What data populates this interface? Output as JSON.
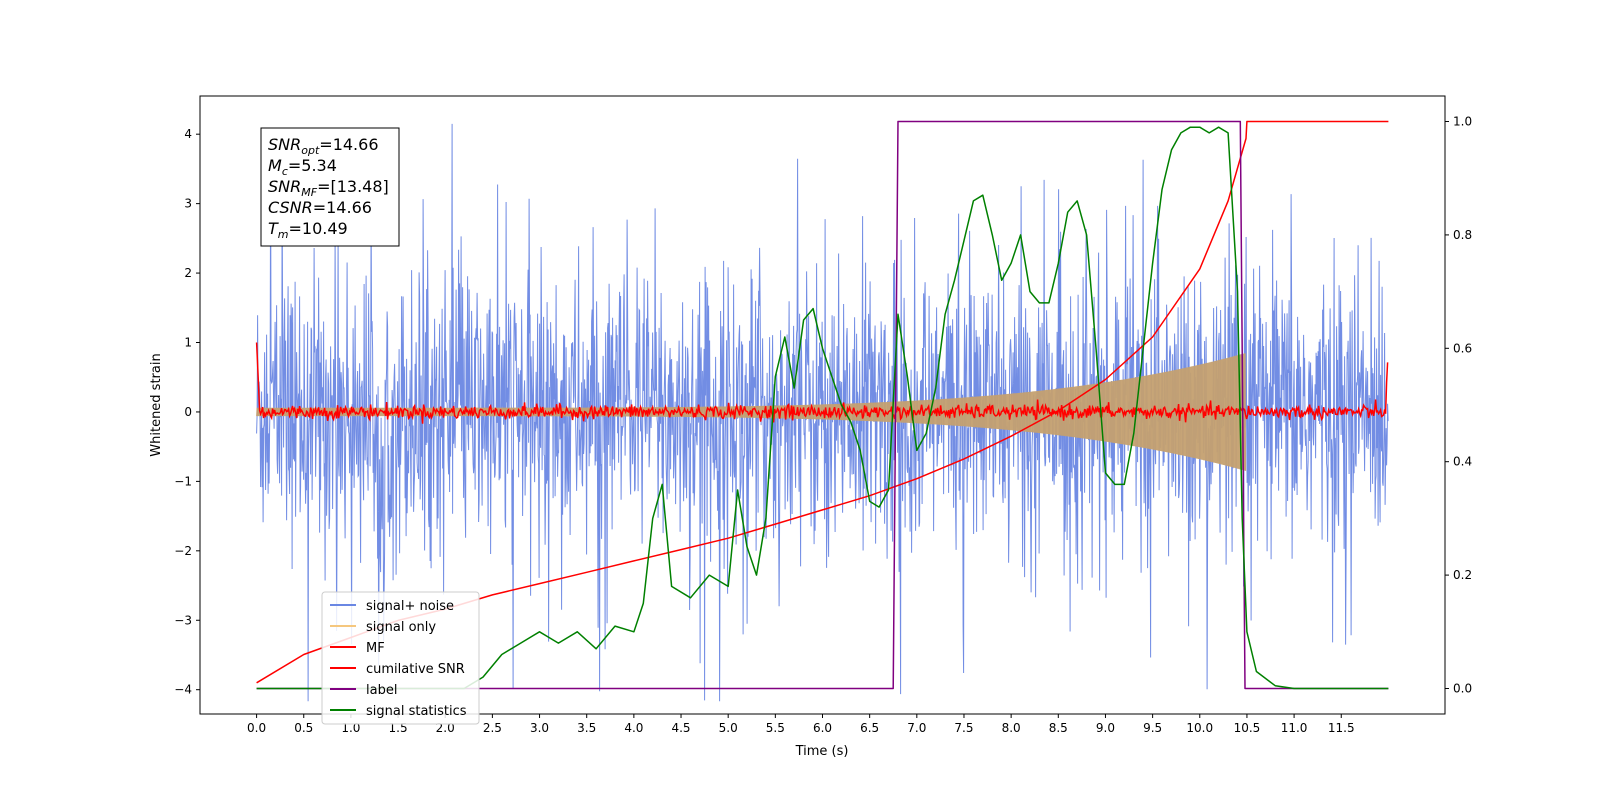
{
  "chart_data": {
    "type": "line",
    "title": "",
    "xlabel": "Time (s)",
    "ylabel": "Whitened strain",
    "y2label": "",
    "xlim": [
      -0.6,
      12.6
    ],
    "ylim": [
      -4.35,
      4.55
    ],
    "y2lim": [
      -0.045,
      1.045
    ],
    "grid": false,
    "legend_position": "lower-left",
    "x_ticks": [
      "0.0",
      "0.5",
      "1.0",
      "1.5",
      "2.0",
      "2.5",
      "3.0",
      "3.5",
      "4.0",
      "4.5",
      "5.0",
      "5.5",
      "6.0",
      "6.5",
      "7.0",
      "7.5",
      "8.0",
      "8.5",
      "9.0",
      "9.5",
      "10.0",
      "10.5",
      "11.0",
      "11.5"
    ],
    "y_ticks": [
      4,
      3,
      2,
      1,
      0,
      -1,
      -2,
      -3,
      -4
    ],
    "y2_ticks": [
      "1.0",
      "0.8",
      "0.6",
      "0.4",
      "0.2",
      "0.0"
    ],
    "annotation": {
      "lines": [
        {
          "base": "SNR",
          "sub": "opt",
          "value": "=14.66"
        },
        {
          "base": "M",
          "sub": "c",
          "value": "=5.34"
        },
        {
          "base": "SNR",
          "sub": "MF",
          "value": "=[13.48]"
        },
        {
          "base": "CSNR",
          "sub": "",
          "value": "=14.66"
        },
        {
          "base": "T",
          "sub": "m",
          "value": "=10.49"
        }
      ]
    },
    "series": [
      {
        "name": "signal+ noise",
        "color": "#6a87e3",
        "axis": "left",
        "style": "noise",
        "x_range": [
          0.0,
          12.0
        ],
        "amplitude": 1.0,
        "spike_max": 4.2
      },
      {
        "name": "signal only",
        "color": "#f5c77e",
        "axis": "left",
        "style": "chirp",
        "x_range": [
          0.0,
          10.49
        ],
        "amplitude_start": 0.06,
        "amplitude_end": 0.85
      },
      {
        "name": "MF",
        "color": "#ff0000",
        "axis": "left",
        "style": "mf",
        "x_range": [
          0.0,
          12.0
        ],
        "edge_value": 1.0
      },
      {
        "name": "cumilative SNR",
        "color": "#ff0000",
        "axis": "right",
        "x": [
          0.0,
          0.5,
          1.0,
          1.5,
          2.0,
          2.5,
          3.0,
          3.5,
          4.0,
          4.5,
          5.0,
          5.5,
          6.0,
          6.5,
          7.0,
          7.5,
          8.0,
          8.5,
          9.0,
          9.5,
          10.0,
          10.3,
          10.49,
          10.5,
          12.0
        ],
        "y": [
          0.01,
          0.06,
          0.09,
          0.12,
          0.14,
          0.165,
          0.185,
          0.205,
          0.225,
          0.245,
          0.265,
          0.29,
          0.315,
          0.34,
          0.37,
          0.405,
          0.445,
          0.49,
          0.545,
          0.62,
          0.74,
          0.86,
          0.97,
          1.0,
          1.0
        ]
      },
      {
        "name": "label",
        "color": "#800080",
        "axis": "right",
        "x": [
          0.0,
          6.75,
          6.8,
          10.43,
          10.48,
          12.0
        ],
        "y": [
          0.0,
          0.0,
          1.0,
          1.0,
          0.0,
          0.0
        ]
      },
      {
        "name": "signal statistics",
        "color": "#008000",
        "axis": "right",
        "x": [
          0.0,
          0.5,
          1.0,
          1.5,
          2.0,
          2.2,
          2.4,
          2.6,
          2.8,
          3.0,
          3.2,
          3.4,
          3.6,
          3.8,
          4.0,
          4.1,
          4.2,
          4.3,
          4.4,
          4.6,
          4.8,
          5.0,
          5.1,
          5.2,
          5.3,
          5.4,
          5.5,
          5.6,
          5.7,
          5.8,
          5.9,
          6.0,
          6.1,
          6.2,
          6.3,
          6.4,
          6.5,
          6.6,
          6.7,
          6.8,
          6.9,
          7.0,
          7.1,
          7.2,
          7.3,
          7.4,
          7.5,
          7.6,
          7.7,
          7.8,
          7.9,
          8.0,
          8.1,
          8.2,
          8.3,
          8.4,
          8.5,
          8.6,
          8.7,
          8.8,
          8.9,
          9.0,
          9.1,
          9.2,
          9.3,
          9.4,
          9.5,
          9.6,
          9.7,
          9.8,
          9.9,
          10.0,
          10.1,
          10.2,
          10.3,
          10.4,
          10.45,
          10.5,
          10.6,
          10.8,
          11.0,
          12.0
        ],
        "y": [
          0.0,
          0.0,
          0.0,
          0.0,
          0.0,
          0.0,
          0.02,
          0.06,
          0.08,
          0.1,
          0.08,
          0.1,
          0.07,
          0.11,
          0.1,
          0.15,
          0.3,
          0.36,
          0.18,
          0.16,
          0.2,
          0.18,
          0.35,
          0.25,
          0.2,
          0.3,
          0.55,
          0.62,
          0.53,
          0.65,
          0.67,
          0.6,
          0.55,
          0.5,
          0.47,
          0.42,
          0.33,
          0.32,
          0.35,
          0.66,
          0.55,
          0.42,
          0.45,
          0.53,
          0.66,
          0.72,
          0.79,
          0.86,
          0.87,
          0.8,
          0.72,
          0.75,
          0.8,
          0.7,
          0.68,
          0.68,
          0.75,
          0.84,
          0.86,
          0.8,
          0.6,
          0.38,
          0.36,
          0.36,
          0.45,
          0.6,
          0.75,
          0.88,
          0.95,
          0.98,
          0.99,
          0.99,
          0.98,
          0.99,
          0.98,
          0.7,
          0.3,
          0.1,
          0.03,
          0.005,
          0.0,
          0.0
        ]
      }
    ]
  }
}
